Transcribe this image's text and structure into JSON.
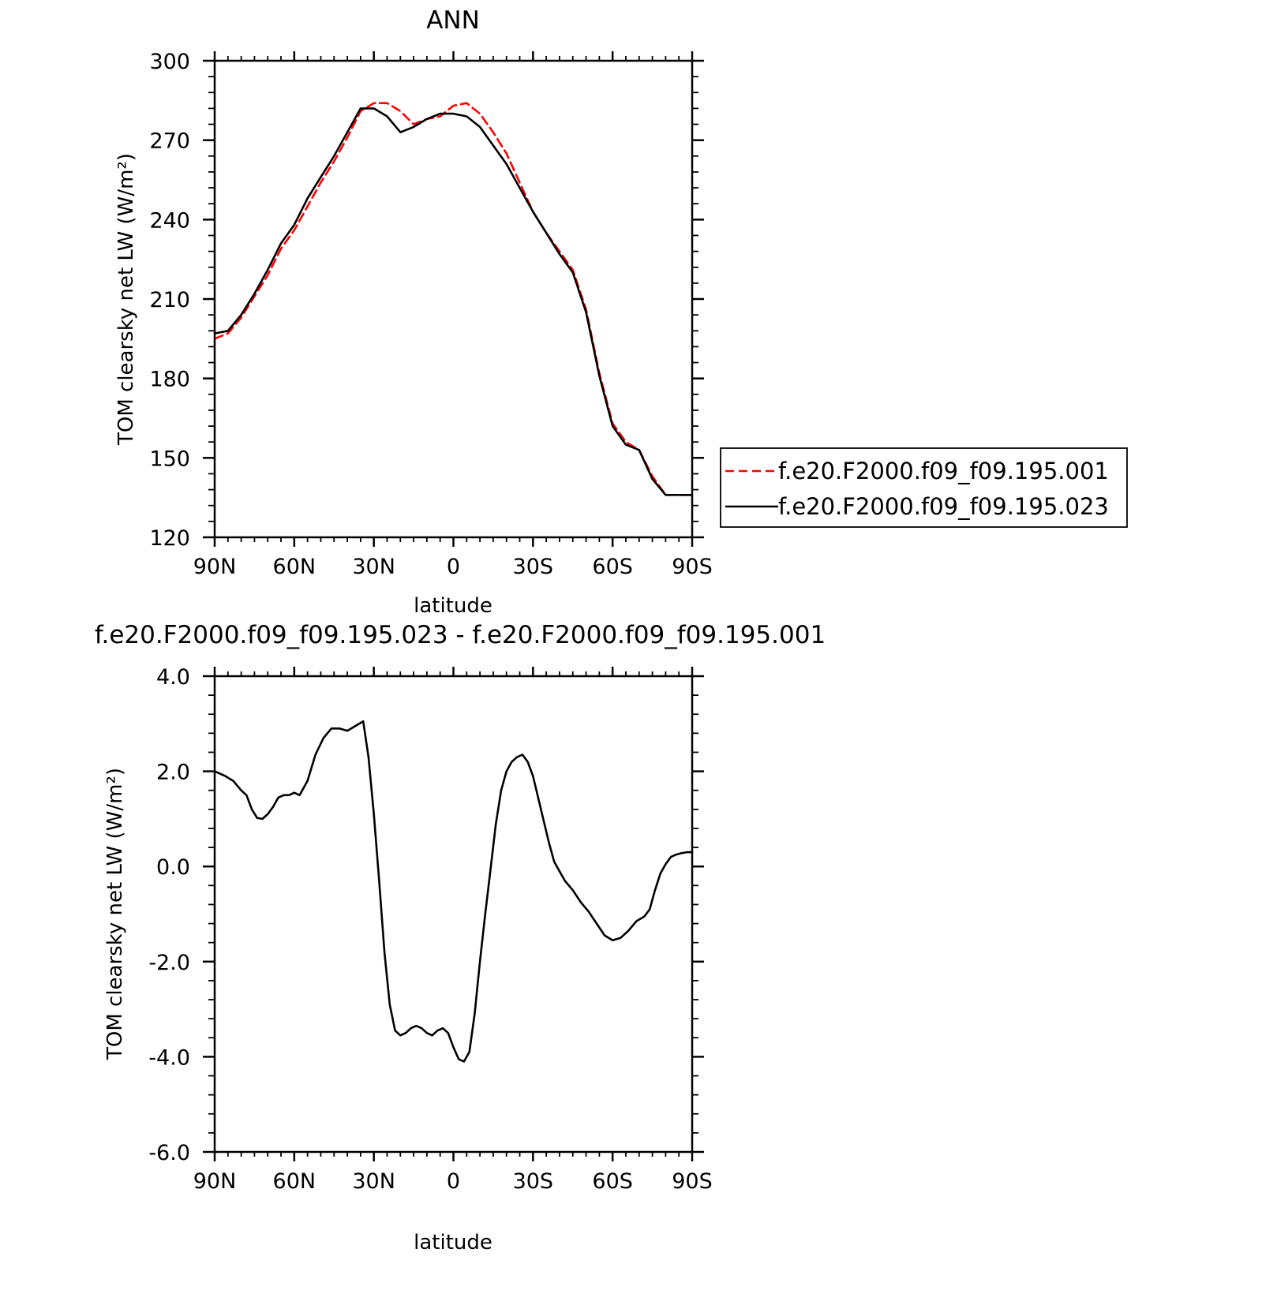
{
  "figure": {
    "legend": {
      "entries": [
        {
          "label": "f.e20.F2000.f09_f09.195.001",
          "color": "#ff0000",
          "dash": "dashed"
        },
        {
          "label": "f.e20.F2000.f09_f09.195.023",
          "color": "#000000",
          "dash": "solid"
        }
      ]
    }
  },
  "chart_data": [
    {
      "type": "line",
      "title": "ANN",
      "xlabel": "latitude",
      "ylabel": "TOM clearsky net LW (W/m²)",
      "xlim": [
        90,
        -90
      ],
      "ylim": [
        120,
        300
      ],
      "x_ticks": [
        {
          "value": 90,
          "label": "90N"
        },
        {
          "value": 60,
          "label": "60N"
        },
        {
          "value": 30,
          "label": "30N"
        },
        {
          "value": 0,
          "label": "0"
        },
        {
          "value": -30,
          "label": "30S"
        },
        {
          "value": -60,
          "label": "60S"
        },
        {
          "value": -90,
          "label": "90S"
        }
      ],
      "y_ticks": [
        {
          "value": 300,
          "label": "300"
        },
        {
          "value": 270,
          "label": "270"
        },
        {
          "value": 240,
          "label": "240"
        },
        {
          "value": 210,
          "label": "210"
        },
        {
          "value": 180,
          "label": "180"
        },
        {
          "value": 150,
          "label": "150"
        },
        {
          "value": 120,
          "label": "120"
        }
      ],
      "grid": false,
      "legend_position": "right",
      "x": [
        90,
        85,
        80,
        75,
        70,
        65,
        60,
        55,
        50,
        45,
        40,
        35,
        30,
        25,
        20,
        15,
        10,
        5,
        0,
        -5,
        -10,
        -15,
        -20,
        -25,
        -30,
        -35,
        -40,
        -45,
        -50,
        -55,
        -60,
        -65,
        -70,
        -75,
        -80,
        -85,
        -90
      ],
      "series": [
        {
          "name": "f.e20.F2000.f09_f09.195.001",
          "color": "#ff0000",
          "dash": "dashed",
          "values": [
            195,
            197,
            203,
            211,
            219,
            229,
            236,
            245,
            254,
            262,
            271,
            281,
            284,
            284,
            281,
            276,
            278,
            279,
            283,
            284,
            280,
            273,
            265,
            254,
            243,
            235,
            228,
            221,
            206,
            182,
            163,
            156,
            153,
            143,
            136,
            136,
            136
          ]
        },
        {
          "name": "f.e20.F2000.f09_f09.195.023",
          "color": "#000000",
          "dash": "solid",
          "values": [
            197,
            198,
            204,
            212,
            221,
            231,
            238,
            248,
            256,
            264,
            273,
            282,
            282,
            279,
            273,
            275,
            278,
            280,
            280,
            279,
            275,
            268,
            261,
            252,
            243,
            235,
            227,
            220,
            205,
            181,
            162,
            155,
            153,
            142,
            136,
            136,
            136
          ]
        }
      ]
    },
    {
      "type": "line",
      "title": "f.e20.F2000.f09_f09.195.023 - f.e20.F2000.f09_f09.195.001",
      "xlabel": "latitude",
      "ylabel": "TOM clearsky net LW (W/m²)",
      "xlim": [
        90,
        -90
      ],
      "ylim": [
        -6,
        4
      ],
      "x_ticks": [
        {
          "value": 90,
          "label": "90N"
        },
        {
          "value": 60,
          "label": "60N"
        },
        {
          "value": 30,
          "label": "30N"
        },
        {
          "value": 0,
          "label": "0"
        },
        {
          "value": -30,
          "label": "30S"
        },
        {
          "value": -60,
          "label": "60S"
        },
        {
          "value": -90,
          "label": "90S"
        }
      ],
      "y_ticks": [
        {
          "value": 4,
          "label": "4.0"
        },
        {
          "value": 2,
          "label": "2.0"
        },
        {
          "value": 0,
          "label": "0.0"
        },
        {
          "value": -2,
          "label": "-2.0"
        },
        {
          "value": -4,
          "label": "-4.0"
        },
        {
          "value": -6,
          "label": "-6.0"
        }
      ],
      "grid": false,
      "x": [
        90,
        86,
        83,
        80,
        78,
        76,
        74,
        72,
        70,
        68,
        66,
        64,
        62,
        60,
        58,
        55,
        52,
        49,
        46,
        43,
        40,
        37,
        34,
        32,
        30,
        28,
        26,
        24,
        22,
        20,
        18,
        16,
        14,
        12,
        10,
        8,
        6,
        4,
        2,
        0,
        -2,
        -4,
        -6,
        -8,
        -10,
        -12,
        -14,
        -16,
        -18,
        -20,
        -22,
        -24,
        -26,
        -28,
        -30,
        -33,
        -36,
        -38,
        -40,
        -42,
        -45,
        -48,
        -51,
        -54,
        -57,
        -60,
        -63,
        -66,
        -69,
        -72,
        -74,
        -76,
        -78,
        -80,
        -82,
        -84,
        -86,
        -88,
        -90
      ],
      "series": [
        {
          "name": "",
          "color": "#000000",
          "dash": "solid",
          "values": [
            2.0,
            1.9,
            1.8,
            1.6,
            1.5,
            1.2,
            1.02,
            1.0,
            1.1,
            1.25,
            1.45,
            1.5,
            1.5,
            1.55,
            1.5,
            1.8,
            2.35,
            2.7,
            2.9,
            2.9,
            2.85,
            2.95,
            3.05,
            2.3,
            1.1,
            -0.3,
            -1.8,
            -2.9,
            -3.45,
            -3.55,
            -3.5,
            -3.4,
            -3.35,
            -3.4,
            -3.5,
            -3.55,
            -3.45,
            -3.4,
            -3.5,
            -3.8,
            -4.05,
            -4.1,
            -3.9,
            -3.1,
            -2.0,
            -1.0,
            -0.05,
            0.9,
            1.6,
            2.0,
            2.2,
            2.3,
            2.35,
            2.2,
            1.9,
            1.2,
            0.5,
            0.1,
            -0.1,
            -0.3,
            -0.5,
            -0.75,
            -0.95,
            -1.2,
            -1.45,
            -1.55,
            -1.5,
            -1.35,
            -1.15,
            -1.05,
            -0.9,
            -0.5,
            -0.15,
            0.05,
            0.2,
            0.25,
            0.28,
            0.3,
            0.3
          ]
        }
      ]
    }
  ]
}
